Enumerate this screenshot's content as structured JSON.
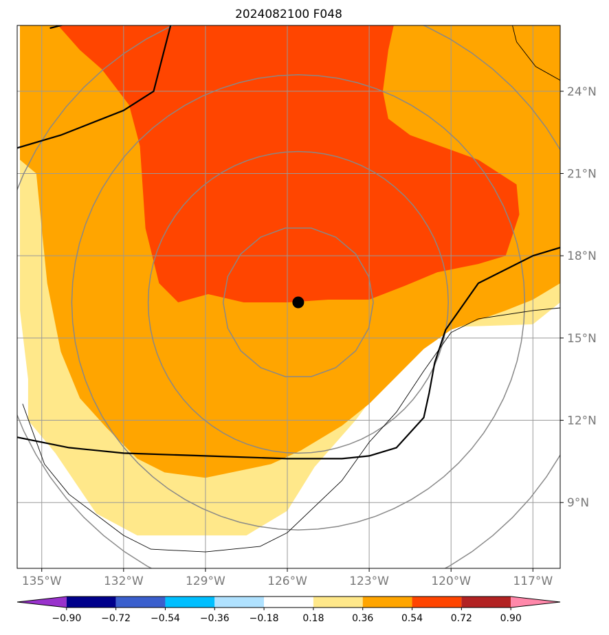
{
  "chart_data": {
    "type": "map",
    "title": "2024082100 F048",
    "projection": "lat-lon",
    "lon_range": [
      -135.9,
      -116.0
    ],
    "lat_range": [
      6.6,
      26.4
    ],
    "lon_ticks": [
      {
        "value": -135,
        "label": "135°W"
      },
      {
        "value": -132,
        "label": "132°W"
      },
      {
        "value": -129,
        "label": "129°W"
      },
      {
        "value": -126,
        "label": "126°W"
      },
      {
        "value": -123,
        "label": "123°W"
      },
      {
        "value": -120,
        "label": "120°W"
      },
      {
        "value": -117,
        "label": "117°W"
      }
    ],
    "lat_ticks": [
      {
        "value": 9,
        "label": "9°N"
      },
      {
        "value": 12,
        "label": "12°N"
      },
      {
        "value": 15,
        "label": "15°N"
      },
      {
        "value": 18,
        "label": "18°N"
      },
      {
        "value": 21,
        "label": "21°N"
      },
      {
        "value": 24,
        "label": "24°N"
      }
    ],
    "grid": true,
    "storm_center": {
      "lon": -125.6,
      "lat": 16.3
    },
    "range_rings_deg": [
      2.75,
      5.5,
      8.3,
      11.1
    ],
    "colorbar": {
      "position": "bottom",
      "extend": "both",
      "boundaries": [
        "−0.90",
        "−0.72",
        "−0.54",
        "−0.36",
        "−0.18",
        "0.18",
        "0.36",
        "0.54",
        "0.72",
        "0.90"
      ],
      "colors": [
        "#9932CC",
        "#00008B",
        "#3A5FCD",
        "#00BFFF",
        "#B0E2FF",
        "#FFFFFF",
        "#FFE88A",
        "#FFA500",
        "#FF4500",
        "#B22222",
        "#FF88AA"
      ]
    },
    "filled_regions": [
      {
        "level": "0.18–0.36",
        "color": "#FFE88A",
        "outline": [
          [
            -135.8,
            26.4
          ],
          [
            -116.0,
            26.4
          ],
          [
            -116.0,
            16.3
          ],
          [
            -117.0,
            15.5
          ],
          [
            -120.0,
            15.4
          ],
          [
            -122.0,
            14.0
          ],
          [
            -123.5,
            12.0
          ],
          [
            -125.0,
            10.3
          ],
          [
            -126.0,
            8.7
          ],
          [
            -127.5,
            7.8
          ],
          [
            -131.5,
            7.8
          ],
          [
            -133.0,
            8.6
          ],
          [
            -134.5,
            10.8
          ],
          [
            -135.5,
            12.0
          ],
          [
            -135.5,
            13.5
          ],
          [
            -135.8,
            16.0
          ]
        ]
      },
      {
        "level": "0.36–0.54",
        "color": "#FFA500",
        "outline": [
          [
            -135.8,
            26.4
          ],
          [
            -116.0,
            26.4
          ],
          [
            -116.0,
            17.0
          ],
          [
            -117.0,
            16.4
          ],
          [
            -118.0,
            16.0
          ],
          [
            -120.0,
            15.3
          ],
          [
            -121.0,
            14.6
          ],
          [
            -122.0,
            13.6
          ],
          [
            -123.0,
            12.6
          ],
          [
            -124.0,
            11.8
          ],
          [
            -125.5,
            10.9
          ],
          [
            -126.6,
            10.4
          ],
          [
            -129.0,
            9.9
          ],
          [
            -130.5,
            10.1
          ],
          [
            -131.5,
            10.6
          ],
          [
            -132.6,
            11.7
          ],
          [
            -133.6,
            12.8
          ],
          [
            -134.3,
            14.5
          ],
          [
            -134.8,
            17.0
          ],
          [
            -135.0,
            19.0
          ],
          [
            -135.2,
            21.0
          ],
          [
            -135.8,
            21.5
          ]
        ]
      },
      {
        "level": "0.54–0.72",
        "color": "#FF4500",
        "outline": [
          [
            -134.4,
            26.4
          ],
          [
            -122.1,
            26.4
          ],
          [
            -122.3,
            25.5
          ],
          [
            -122.5,
            24.0
          ],
          [
            -122.3,
            23.0
          ],
          [
            -121.5,
            22.4
          ],
          [
            -119.0,
            21.5
          ],
          [
            -117.6,
            20.6
          ],
          [
            -117.5,
            19.5
          ],
          [
            -118.0,
            18.0
          ],
          [
            -119.0,
            17.7
          ],
          [
            -120.5,
            17.4
          ],
          [
            -121.7,
            16.9
          ],
          [
            -123.0,
            16.4
          ],
          [
            -124.5,
            16.4
          ],
          [
            -126.0,
            16.3
          ],
          [
            -127.6,
            16.3
          ],
          [
            -128.9,
            16.6
          ],
          [
            -130.0,
            16.3
          ],
          [
            -130.7,
            17.0
          ],
          [
            -131.2,
            19.0
          ],
          [
            -131.4,
            22.0
          ],
          [
            -131.8,
            23.5
          ],
          [
            -132.8,
            24.8
          ],
          [
            -133.6,
            25.5
          ]
        ]
      }
    ],
    "boundaries": [
      {
        "style": "thick",
        "points": [
          [
            -136.0,
            21.9
          ],
          [
            -134.3,
            22.4
          ],
          [
            -132.0,
            23.3
          ],
          [
            -130.9,
            24.0
          ],
          [
            -130.2,
            26.7
          ],
          [
            -132.3,
            26.6
          ],
          [
            -133.9,
            26.5
          ],
          [
            -134.7,
            26.3
          ]
        ]
      },
      {
        "style": "thick",
        "points": [
          [
            -136.0,
            11.4
          ],
          [
            -134.0,
            11.0
          ],
          [
            -132.0,
            10.8
          ],
          [
            -129.0,
            10.7
          ],
          [
            -126.0,
            10.6
          ],
          [
            -124.0,
            10.6
          ],
          [
            -123.0,
            10.7
          ],
          [
            -122.0,
            11.0
          ],
          [
            -121.0,
            12.1
          ],
          [
            -120.8,
            13.0
          ],
          [
            -120.6,
            14.1
          ],
          [
            -120.2,
            15.3
          ],
          [
            -119.0,
            17.0
          ],
          [
            -117.0,
            18.0
          ],
          [
            -116.0,
            18.3
          ]
        ]
      },
      {
        "style": "thin",
        "points": [
          [
            -135.7,
            12.6
          ],
          [
            -134.9,
            10.4
          ],
          [
            -134.0,
            9.3
          ],
          [
            -132.0,
            7.8
          ],
          [
            -131.0,
            7.3
          ],
          [
            -129.0,
            7.2
          ],
          [
            -127.0,
            7.4
          ],
          [
            -126.0,
            7.9
          ],
          [
            -124.0,
            9.8
          ],
          [
            -123.0,
            11.2
          ],
          [
            -122.0,
            12.3
          ],
          [
            -121.0,
            13.8
          ],
          [
            -120.0,
            15.2
          ],
          [
            -119.0,
            15.7
          ],
          [
            -117.0,
            16.0
          ],
          [
            -116.0,
            16.1
          ]
        ]
      },
      {
        "style": "thin",
        "points": [
          [
            -117.8,
            26.6
          ],
          [
            -117.6,
            25.8
          ],
          [
            -116.9,
            24.9
          ],
          [
            -116.0,
            24.4
          ]
        ]
      }
    ]
  }
}
